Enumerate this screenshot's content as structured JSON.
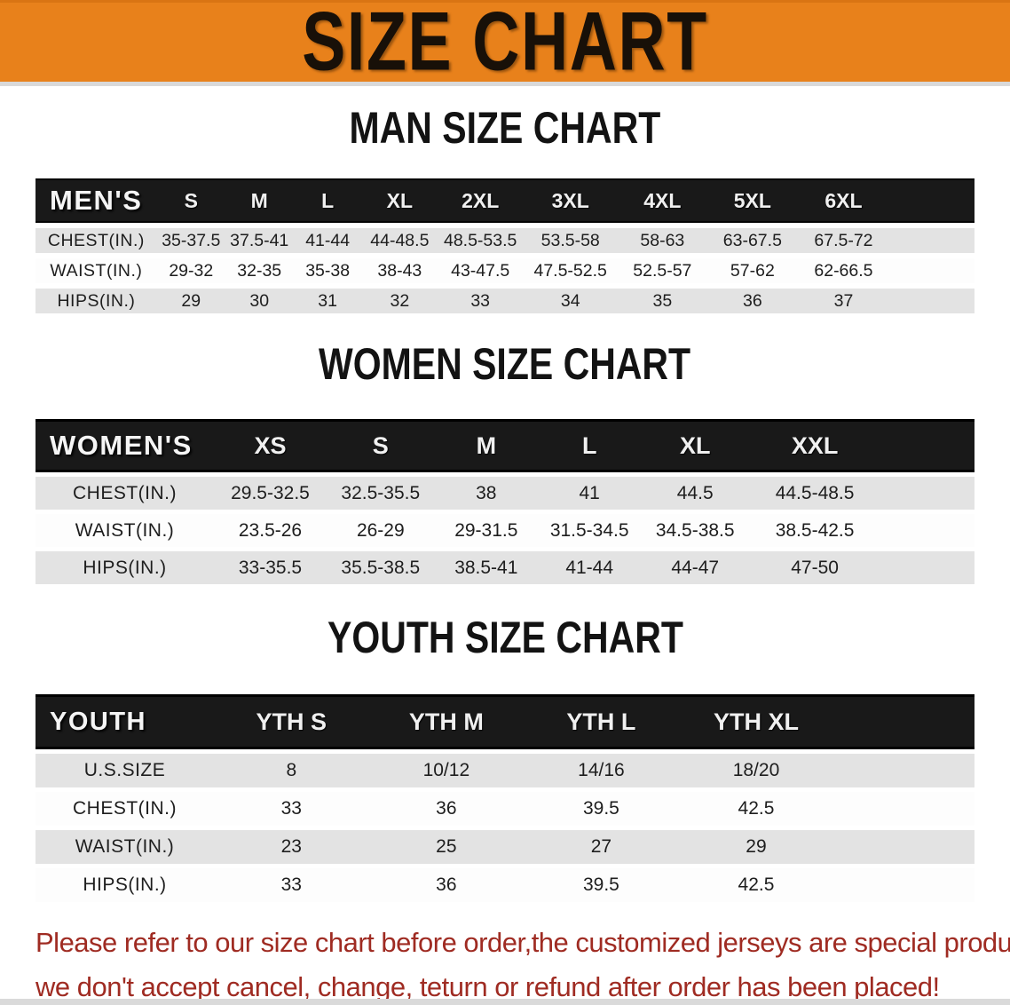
{
  "banner": {
    "title": "SIZE CHART"
  },
  "colors": {
    "banner_bg": "#e8811b",
    "table_header_bg": "#191919",
    "row_gray": "#e3e3e3",
    "row_white": "#fdfdfd",
    "disclaimer_red": "#9f2b22"
  },
  "sections": [
    {
      "id": "men",
      "heading": "MAN SIZE CHART",
      "header_label": "MEN'S",
      "columns": [
        "S",
        "M",
        "L",
        "XL",
        "2XL",
        "3XL",
        "4XL",
        "5XL",
        "6XL"
      ],
      "rows": [
        {
          "label": "CHEST(IN.)",
          "values": [
            "35-37.5",
            "37.5-41",
            "41-44",
            "44-48.5",
            "48.5-53.5",
            "53.5-58",
            "58-63",
            "63-67.5",
            "67.5-72"
          ]
        },
        {
          "label": "WAIST(IN.)",
          "values": [
            "29-32",
            "32-35",
            "35-38",
            "38-43",
            "43-47.5",
            "47.5-52.5",
            "52.5-57",
            "57-62",
            "62-66.5"
          ]
        },
        {
          "label": "HIPS(IN.)",
          "values": [
            "29",
            "30",
            "31",
            "32",
            "33",
            "34",
            "35",
            "36",
            "37"
          ]
        }
      ]
    },
    {
      "id": "women",
      "heading": "WOMEN SIZE CHART",
      "header_label": "WOMEN'S",
      "columns": [
        "XS",
        "S",
        "M",
        "L",
        "XL",
        "XXL"
      ],
      "rows": [
        {
          "label": "CHEST(IN.)",
          "values": [
            "29.5-32.5",
            "32.5-35.5",
            "38",
            "41",
            "44.5",
            "44.5-48.5"
          ]
        },
        {
          "label": "WAIST(IN.)",
          "values": [
            "23.5-26",
            "26-29",
            "29-31.5",
            "31.5-34.5",
            "34.5-38.5",
            "38.5-42.5"
          ]
        },
        {
          "label": "HIPS(IN.)",
          "values": [
            "33-35.5",
            "35.5-38.5",
            "38.5-41",
            "41-44",
            "44-47",
            "47-50"
          ]
        }
      ]
    },
    {
      "id": "youth",
      "heading": "YOUTH SIZE CHART",
      "header_label": "YOUTH",
      "columns": [
        "YTH S",
        "YTH M",
        "YTH L",
        "YTH XL"
      ],
      "rows": [
        {
          "label": "U.S.SIZE",
          "values": [
            "8",
            "10/12",
            "14/16",
            "18/20"
          ]
        },
        {
          "label": "CHEST(IN.)",
          "values": [
            "33",
            "36",
            "39.5",
            "42.5"
          ]
        },
        {
          "label": "WAIST(IN.)",
          "values": [
            "23",
            "25",
            "27",
            "29"
          ]
        },
        {
          "label": "HIPS(IN.)",
          "values": [
            "33",
            "36",
            "39.5",
            "42.5"
          ]
        }
      ]
    }
  ],
  "disclaimer": {
    "line1": "Please refer to our size chart before order,the customized jerseys are special products,",
    "line2": "we don't accept cancel, change, teturn or refund after order has been placed!"
  }
}
